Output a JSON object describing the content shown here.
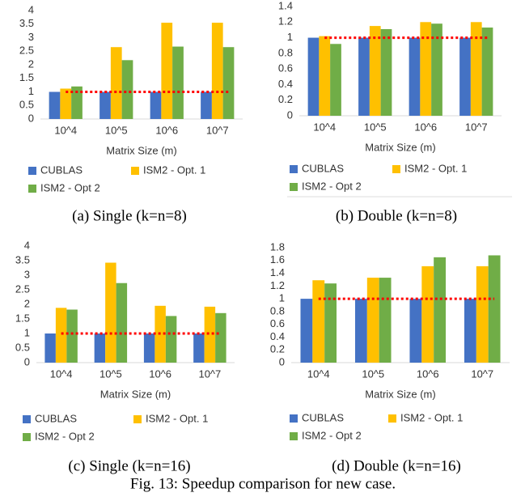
{
  "chart_data": [
    {
      "type": "bar",
      "caption": "(a) Single (k=n=8)",
      "x_label": "Matrix Size (m)",
      "categories": [
        "10^4",
        "10^5",
        "10^6",
        "10^7"
      ],
      "series": [
        {
          "name": "CUBLAS",
          "color": "#4472c4",
          "values": [
            1,
            1,
            1,
            1
          ]
        },
        {
          "name": "ISM2 - Opt. 1",
          "color": "#ffc000",
          "values": [
            1.12,
            2.65,
            3.55,
            3.55
          ]
        },
        {
          "name": "ISM2 - Opt 2",
          "color": "#70ad47",
          "values": [
            1.2,
            2.17,
            2.67,
            2.65
          ]
        }
      ],
      "ylim": [
        0,
        4
      ],
      "yticks": [
        0,
        0.5,
        1,
        1.5,
        2,
        2.5,
        3,
        3.5,
        4
      ],
      "reference_line": {
        "value": 1,
        "color": "#ff0000"
      }
    },
    {
      "type": "bar",
      "caption": "(b) Double (k=n=8)",
      "x_label": "Matrix Size (m)",
      "categories": [
        "10^4",
        "10^5",
        "10^6",
        "10^7"
      ],
      "series": [
        {
          "name": "CUBLAS",
          "color": "#4472c4",
          "values": [
            1,
            1,
            1,
            1
          ]
        },
        {
          "name": "ISM2 - Opt. 1",
          "color": "#ffc000",
          "values": [
            1.02,
            1.15,
            1.2,
            1.2
          ]
        },
        {
          "name": "ISM2 - Opt 2",
          "color": "#70ad47",
          "values": [
            0.92,
            1.11,
            1.18,
            1.13
          ]
        }
      ],
      "ylim": [
        0,
        1.4
      ],
      "yticks": [
        0,
        0.2,
        0.4,
        0.6,
        0.8,
        1,
        1.2,
        1.4
      ],
      "reference_line": {
        "value": 1,
        "color": "#ff0000"
      }
    },
    {
      "type": "bar",
      "caption": "(c) Single (k=n=16)",
      "x_label": "Matrix Size (m)",
      "categories": [
        "10^4",
        "10^5",
        "10^6",
        "10^7"
      ],
      "series": [
        {
          "name": "CUBLAS",
          "color": "#4472c4",
          "values": [
            1,
            1,
            1,
            1
          ]
        },
        {
          "name": "ISM2 - Opt. 1",
          "color": "#ffc000",
          "values": [
            1.88,
            3.43,
            1.95,
            1.92
          ]
        },
        {
          "name": "ISM2 - Opt 2",
          "color": "#70ad47",
          "values": [
            1.82,
            2.73,
            1.6,
            1.7
          ]
        }
      ],
      "ylim": [
        0,
        4
      ],
      "yticks": [
        0,
        0.5,
        1,
        1.5,
        2,
        2.5,
        3,
        3.5,
        4
      ],
      "reference_line": {
        "value": 1,
        "color": "#ff0000"
      }
    },
    {
      "type": "bar",
      "caption": "(d) Double (k=n=16)",
      "x_label": "Matrix Size (m)",
      "categories": [
        "10^4",
        "10^5",
        "10^6",
        "10^7"
      ],
      "series": [
        {
          "name": "CUBLAS",
          "color": "#4472c4",
          "values": [
            1,
            1,
            1,
            1
          ]
        },
        {
          "name": "ISM2 - Opt. 1",
          "color": "#ffc000",
          "values": [
            1.29,
            1.33,
            1.51,
            1.51
          ]
        },
        {
          "name": "ISM2 - Opt 2",
          "color": "#70ad47",
          "values": [
            1.24,
            1.33,
            1.65,
            1.68
          ]
        }
      ],
      "ylim": [
        0,
        1.8
      ],
      "yticks": [
        0,
        0.2,
        0.4,
        0.6,
        0.8,
        1,
        1.2,
        1.4,
        1.6,
        1.8
      ],
      "reference_line": {
        "value": 1,
        "color": "#ff0000"
      }
    }
  ],
  "figure_caption": "Fig. 13: Speedup comparison for new case."
}
